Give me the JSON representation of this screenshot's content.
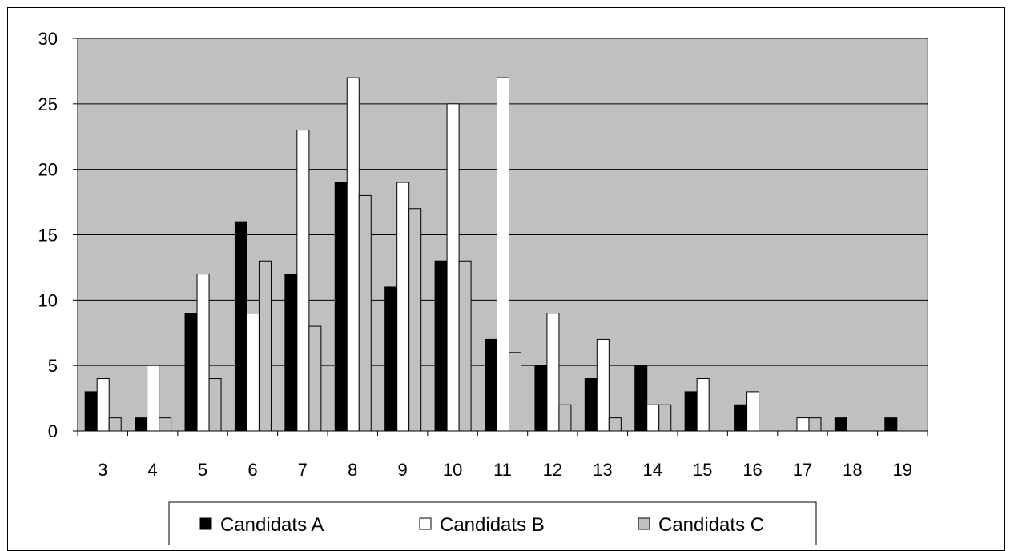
{
  "chart_data": {
    "type": "bar",
    "categories": [
      "3",
      "4",
      "5",
      "6",
      "7",
      "8",
      "9",
      "10",
      "11",
      "12",
      "13",
      "14",
      "15",
      "16",
      "17",
      "18",
      "19"
    ],
    "series": [
      {
        "name": "Candidats A",
        "color": "#000000",
        "values": [
          3,
          1,
          9,
          16,
          12,
          19,
          11,
          13,
          7,
          5,
          4,
          5,
          3,
          2,
          0,
          1,
          1
        ]
      },
      {
        "name": "Candidats B",
        "color": "#ffffff",
        "values": [
          4,
          5,
          12,
          9,
          23,
          27,
          19,
          25,
          27,
          9,
          7,
          2,
          4,
          3,
          1,
          0,
          0
        ]
      },
      {
        "name": "Candidats C",
        "color": "#c0c0c0",
        "values": [
          1,
          1,
          4,
          13,
          8,
          18,
          17,
          13,
          6,
          2,
          1,
          2,
          0,
          0,
          1,
          0,
          0
        ]
      }
    ],
    "ylim": [
      0,
      30
    ],
    "yticks": [
      0,
      5,
      10,
      15,
      20,
      25,
      30
    ],
    "plot_background": "#c0c0c0",
    "grid": true,
    "legend_position": "bottom"
  }
}
